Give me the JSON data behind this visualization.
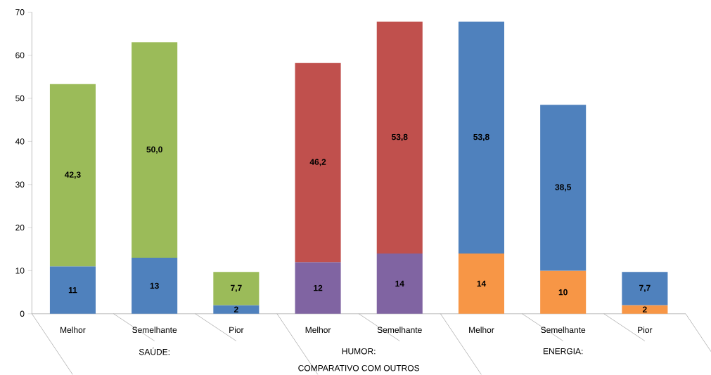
{
  "chart_data": {
    "type": "bar",
    "stacked": true,
    "xlabel": "COMPARATIVO COM OUTROS",
    "categories": [
      "Melhor",
      "Semelhante",
      "Pior",
      "Melhor",
      "Semelhante",
      "Melhor",
      "Semelhante",
      "Pior"
    ],
    "annotations": [
      "SAÚDE:",
      "HUMOR:",
      "ENERGIA:"
    ],
    "ylim": [
      0,
      70
    ],
    "yticks": [
      0,
      10,
      20,
      30,
      40,
      50,
      60,
      70
    ],
    "series": [
      {
        "colors": [
          "#4f81bd",
          "#4f81bd",
          "#4f81bd",
          "#8064a2",
          "#8064a2",
          "#f79646",
          "#f79646",
          "#f79646"
        ],
        "values": [
          11,
          13,
          2,
          12,
          14,
          14,
          10,
          2
        ],
        "value_labels": [
          "11",
          "13",
          "2",
          "12",
          "14",
          "14",
          "10",
          "2"
        ]
      },
      {
        "colors": [
          "#9bbb59",
          "#9bbb59",
          "#9bbb59",
          "#c0504d",
          "#c0504d",
          "#4f81bd",
          "#4f81bd",
          "#4f81bd"
        ],
        "values": [
          42.3,
          50.0,
          7.7,
          46.2,
          53.8,
          53.8,
          38.5,
          7.7
        ],
        "value_labels": [
          "42,3",
          "50,0",
          "7,7",
          "46,2",
          "53,8",
          "53,8",
          "38,5",
          "7,7"
        ]
      }
    ]
  }
}
